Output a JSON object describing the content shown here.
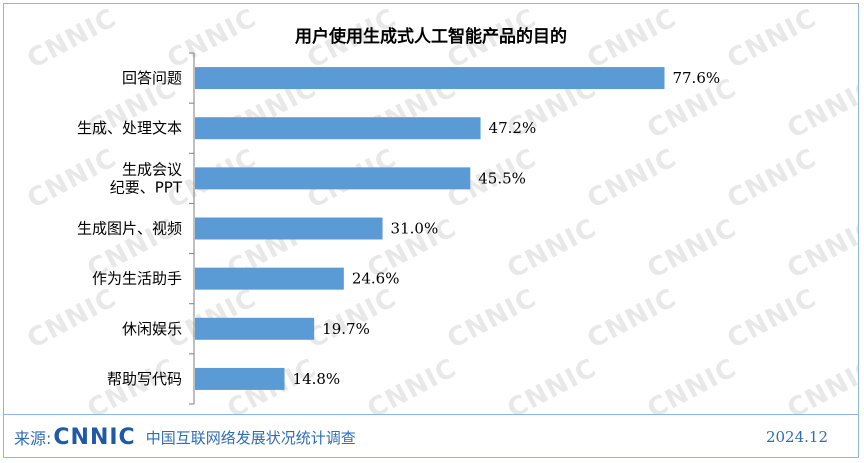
{
  "chart_data": {
    "type": "bar",
    "orientation": "horizontal",
    "title": "用户使用生成式人工智能产品的目的",
    "categories": [
      "回答问题",
      "生成、处理文本",
      "生成会议\n纪要、PPT",
      "生成图片、视频",
      "作为生活助手",
      "休闲娱乐",
      "帮助写代码"
    ],
    "values": [
      77.6,
      47.2,
      45.5,
      31.0,
      24.6,
      19.7,
      14.8
    ],
    "value_labels": [
      "77.6%",
      "47.2%",
      "45.5%",
      "31.0%",
      "24.6%",
      "19.7%",
      "14.8%"
    ],
    "unit": "%",
    "xlim": [
      0,
      100
    ],
    "bar_color": "#5b9bd5",
    "grid": false,
    "legend": "none"
  },
  "footer": {
    "source_label": "来源:",
    "logo_text": "CNNIC",
    "source_name": "中国互联网络发展状况统计调查",
    "date": "2024.12"
  },
  "watermark_text": "CNNIC"
}
